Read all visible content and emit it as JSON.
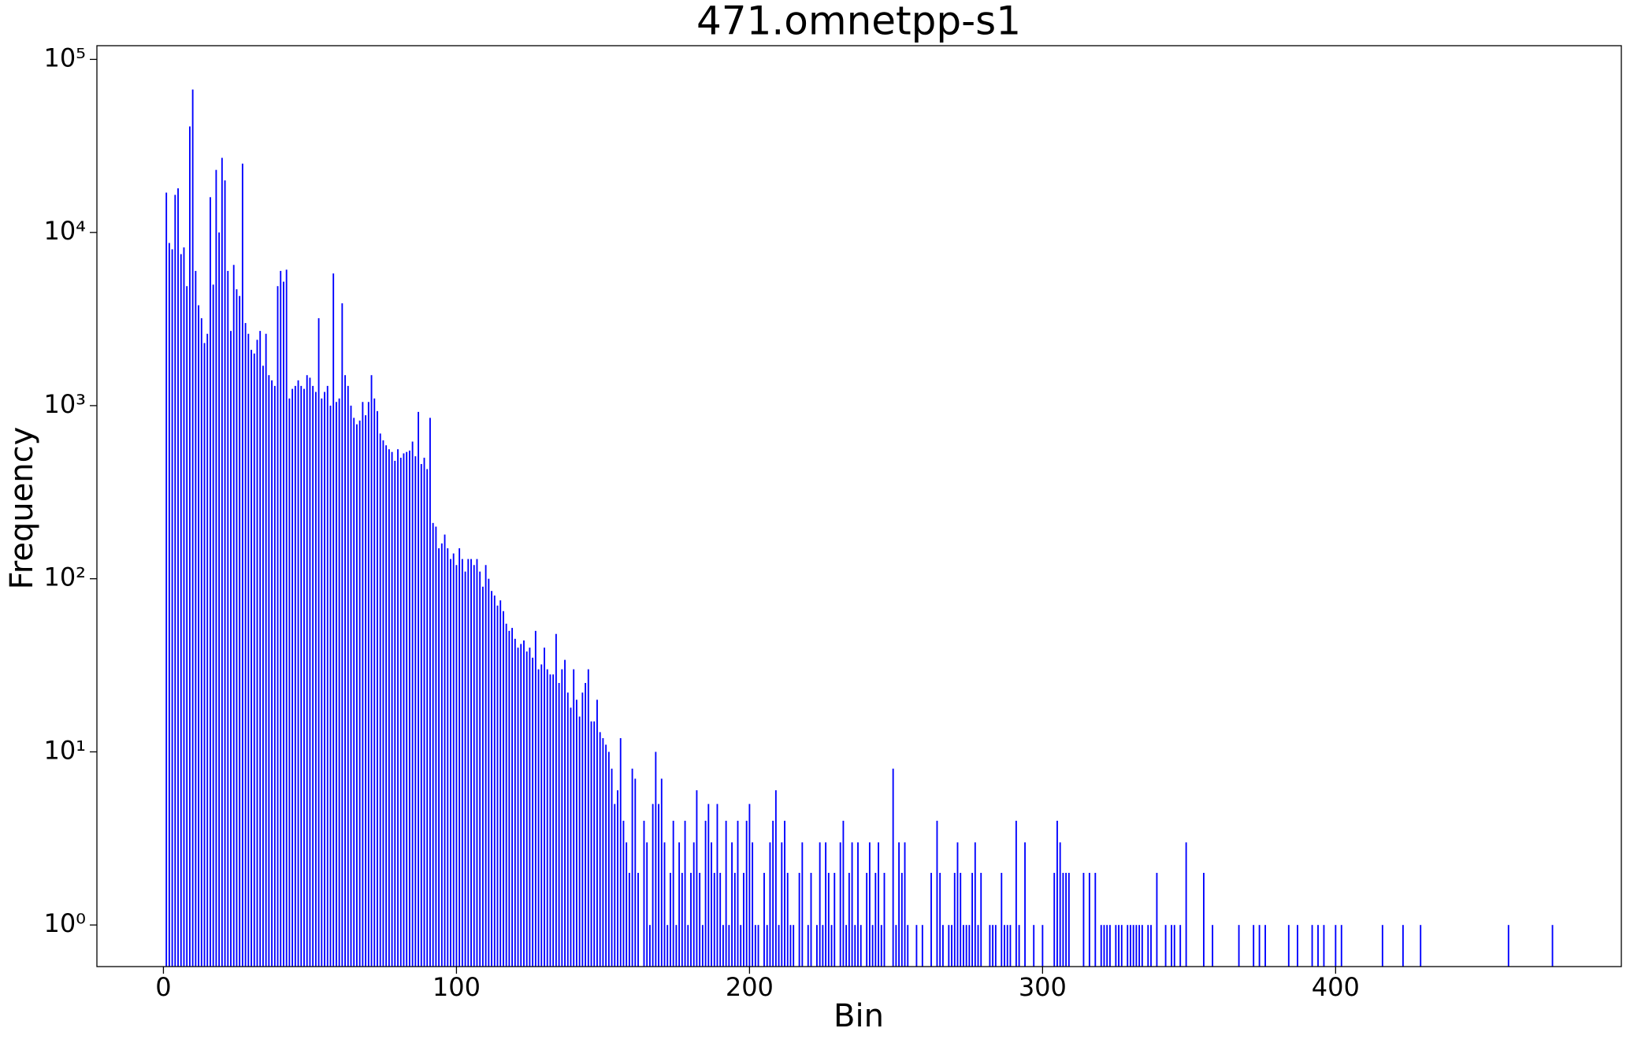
{
  "chart_data": {
    "type": "bar",
    "title": "471.omnetpp-s1",
    "xlabel": "Bin",
    "ylabel": "Frequency",
    "color": "#0000ff",
    "ylog": true,
    "xlim": [
      -22.7,
      497.5
    ],
    "xticks": [
      0,
      100,
      200,
      300,
      400
    ],
    "ylim": [
      0.575,
      120000
    ],
    "yticks": [
      {
        "value": 1,
        "label": "10⁰"
      },
      {
        "value": 10,
        "label": "10¹"
      },
      {
        "value": 100,
        "label": "10²"
      },
      {
        "value": 1000,
        "label": "10³"
      },
      {
        "value": 10000,
        "label": "10⁴"
      },
      {
        "value": 100000,
        "label": "10⁵"
      }
    ],
    "x": [
      1,
      2,
      3,
      4,
      5,
      6,
      7,
      8,
      9,
      10,
      11,
      12,
      13,
      14,
      15,
      16,
      17,
      18,
      19,
      20,
      21,
      22,
      23,
      24,
      25,
      26,
      27,
      28,
      29,
      30,
      31,
      32,
      33,
      34,
      35,
      36,
      37,
      38,
      39,
      40,
      41,
      42,
      43,
      44,
      45,
      46,
      47,
      48,
      49,
      50,
      51,
      52,
      53,
      54,
      55,
      56,
      57,
      58,
      59,
      60,
      61,
      62,
      63,
      64,
      65,
      66,
      67,
      68,
      69,
      70,
      71,
      72,
      73,
      74,
      75,
      76,
      77,
      78,
      79,
      80,
      81,
      82,
      83,
      84,
      85,
      86,
      87,
      88,
      89,
      90,
      91,
      92,
      93,
      94,
      95,
      96,
      97,
      98,
      99,
      100,
      101,
      102,
      103,
      104,
      105,
      106,
      107,
      108,
      109,
      110,
      111,
      112,
      113,
      114,
      115,
      116,
      117,
      118,
      119,
      120,
      121,
      122,
      123,
      124,
      125,
      126,
      127,
      128,
      129,
      130,
      131,
      132,
      133,
      134,
      135,
      136,
      137,
      138,
      139,
      140,
      141,
      142,
      143,
      144,
      145,
      146,
      147,
      148,
      149,
      150,
      151,
      152,
      153,
      154,
      155,
      156,
      157,
      158,
      159,
      160,
      161,
      162,
      164,
      165,
      166,
      167,
      168,
      169,
      170,
      171,
      172,
      173,
      174,
      175,
      176,
      177,
      178,
      179,
      180,
      181,
      182,
      183,
      184,
      185,
      186,
      187,
      188,
      189,
      190,
      191,
      192,
      193,
      194,
      195,
      196,
      197,
      198,
      199,
      200,
      201,
      202,
      203,
      205,
      206,
      207,
      208,
      209,
      210,
      211,
      212,
      213,
      214,
      215,
      217,
      218,
      220,
      221,
      223,
      224,
      225,
      226,
      227,
      228,
      229,
      231,
      232,
      233,
      234,
      235,
      236,
      237,
      238,
      240,
      241,
      242,
      243,
      244,
      245,
      246,
      249,
      250,
      251,
      252,
      253,
      254,
      257,
      259,
      262,
      264,
      265,
      266,
      268,
      269,
      270,
      271,
      272,
      273,
      274,
      275,
      276,
      277,
      278,
      279,
      282,
      283,
      284,
      286,
      287,
      288,
      289,
      291,
      292,
      294,
      297,
      300,
      304,
      305,
      306,
      307,
      308,
      309,
      314,
      316,
      318,
      320,
      321,
      322,
      323,
      325,
      326,
      327,
      329,
      330,
      331,
      332,
      333,
      334,
      336,
      337,
      339,
      342,
      344,
      345,
      347,
      349,
      355,
      358,
      367,
      372,
      374,
      376,
      384,
      387,
      392,
      394,
      396,
      400,
      402,
      416,
      423,
      429,
      459,
      474
    ],
    "values": [
      17000,
      8700,
      8000,
      16500,
      18000,
      7500,
      8200,
      4900,
      41000,
      67000,
      6000,
      3800,
      3200,
      2300,
      2600,
      16000,
      5000,
      23000,
      10000,
      27000,
      20000,
      6000,
      2700,
      6500,
      4700,
      4300,
      25000,
      3000,
      2600,
      2100,
      2000,
      2400,
      2700,
      1700,
      2600,
      1500,
      1400,
      1300,
      4900,
      6000,
      5200,
      6100,
      1100,
      1250,
      1300,
      1400,
      1300,
      1250,
      1500,
      1450,
      1300,
      1200,
      3200,
      1100,
      1200,
      1300,
      1000,
      5800,
      1050,
      1100,
      3900,
      1500,
      1300,
      1000,
      850,
      780,
      820,
      1050,
      880,
      1050,
      1500,
      1100,
      930,
      690,
      630,
      590,
      560,
      540,
      480,
      560,
      500,
      530,
      540,
      550,
      620,
      510,
      920,
      460,
      500,
      430,
      850,
      210,
      200,
      150,
      160,
      180,
      150,
      130,
      140,
      120,
      150,
      130,
      110,
      130,
      130,
      120,
      130,
      110,
      90,
      120,
      100,
      85,
      80,
      70,
      75,
      65,
      55,
      50,
      52,
      45,
      40,
      42,
      44,
      38,
      40,
      35,
      50,
      30,
      32,
      40,
      30,
      28,
      28,
      48,
      25,
      30,
      34,
      22,
      18,
      30,
      20,
      16,
      22,
      25,
      30,
      15,
      15,
      20,
      13,
      12,
      11,
      10,
      8,
      5,
      6,
      12,
      4,
      3,
      2,
      8,
      7,
      2,
      4,
      3,
      1,
      5,
      10,
      5,
      7,
      3,
      1,
      2,
      4,
      1,
      3,
      2,
      4,
      1,
      2,
      3,
      6,
      2,
      1,
      4,
      5,
      3,
      2,
      5,
      2,
      1,
      4,
      1,
      3,
      2,
      4,
      1,
      2,
      4,
      5,
      3,
      1,
      1,
      2,
      1,
      3,
      4,
      6,
      1,
      3,
      4,
      2,
      1,
      1,
      2,
      3,
      1,
      2,
      1,
      3,
      1,
      3,
      2,
      1,
      2,
      3,
      4,
      1,
      2,
      3,
      1,
      3,
      1,
      2,
      3,
      1,
      2,
      3,
      1,
      2,
      8,
      1,
      3,
      2,
      3,
      1,
      1,
      1,
      2,
      4,
      2,
      1,
      1,
      1,
      2,
      3,
      2,
      1,
      1,
      1,
      2,
      3,
      1,
      2,
      1,
      1,
      1,
      2,
      1,
      1,
      1,
      4,
      1,
      3,
      1,
      1,
      2,
      4,
      3,
      2,
      2,
      2,
      2,
      2,
      2,
      1,
      1,
      1,
      1,
      1,
      1,
      1,
      1,
      1,
      1,
      1,
      1,
      1,
      1,
      1,
      2,
      1,
      1,
      1,
      1,
      3,
      2,
      1,
      1,
      1,
      1,
      1,
      1,
      1,
      1,
      1,
      1,
      1,
      1,
      1,
      1,
      1,
      1,
      1
    ]
  }
}
